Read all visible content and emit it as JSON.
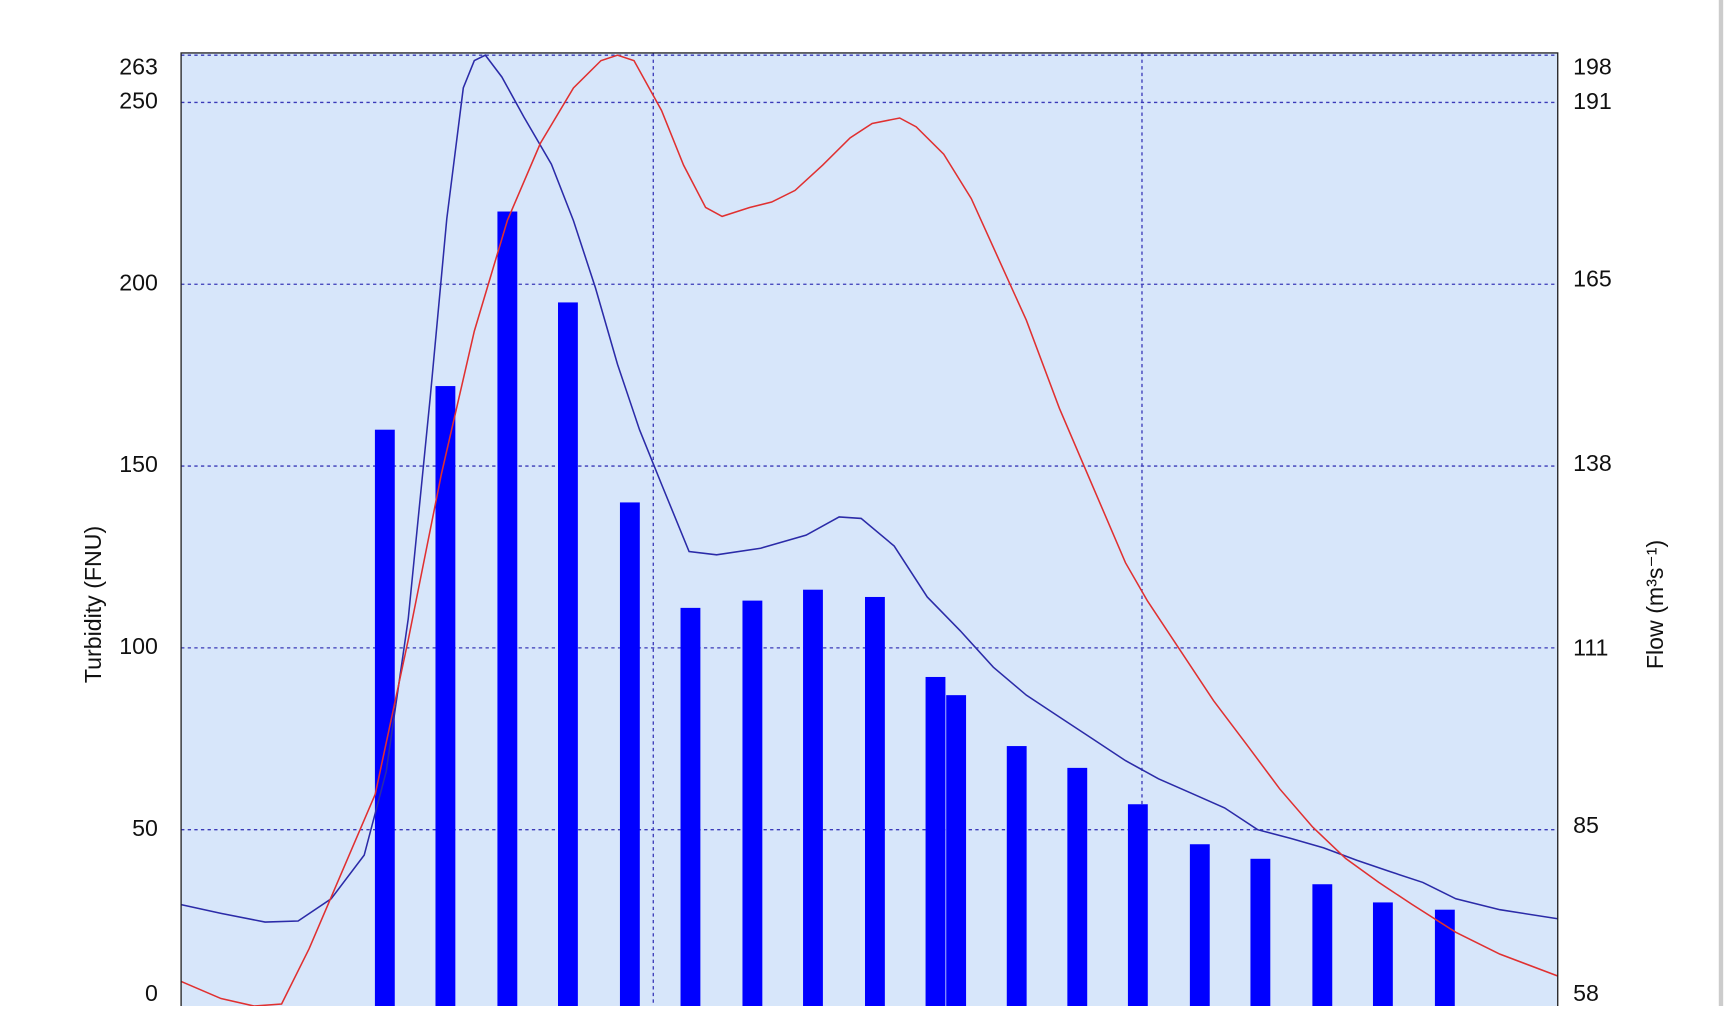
{
  "chart_data": {
    "type": "combo",
    "xlim": [
      0,
      100
    ],
    "xticks": [
      34.3,
      69.8
    ],
    "ylim": [
      0,
      263
    ],
    "yticks": [
      0,
      50,
      100,
      150,
      200,
      250,
      263
    ],
    "y2lim": [
      58,
      198
    ],
    "y2ticks": [
      58,
      85,
      111,
      138,
      165,
      191,
      198
    ],
    "ylabel": "Turbidity (FNU)",
    "y2label": "Flow (m³s⁻¹)",
    "grid": true,
    "series": [
      {
        "type": "bar",
        "color": "#0000ff",
        "x": [
          14.8,
          19.2,
          23.7,
          28.1,
          32.6,
          37.0,
          41.5,
          45.9,
          50.4,
          54.8,
          56.3,
          60.7,
          65.1,
          69.5,
          74.0,
          78.4,
          82.9,
          87.3,
          91.8
        ],
        "values": [
          160,
          172,
          220,
          195,
          140,
          111,
          113,
          116,
          114,
          92,
          87,
          73,
          67,
          57,
          46,
          42,
          35,
          30,
          28
        ]
      },
      {
        "type": "line",
        "color": "#2b2ba8",
        "x": [
          0,
          2.9,
          6.1,
          8.5,
          10.9,
          13.3,
          14.9,
          16.5,
          18.1,
          19.3,
          20.5,
          21.3,
          22.1,
          23.3,
          24.9,
          26.9,
          28.5,
          30.1,
          31.7,
          33.3,
          34.9,
          36.9,
          38.9,
          42.1,
          45.4,
          47.8,
          49.4,
          51.8,
          54.2,
          56.6,
          59.0,
          61.4,
          63.8,
          66.2,
          68.6,
          71.0,
          73.4,
          75.8,
          78.2,
          80.6,
          83.0,
          85.4,
          87.8,
          90.2,
          92.6,
          95.8,
          100
        ],
        "values": [
          29.4,
          27,
          24.6,
          24.9,
          31,
          43,
          66,
          108,
          169,
          218,
          254,
          261.5,
          263,
          257,
          246,
          233,
          217.5,
          199,
          178,
          160,
          145,
          126.5,
          125.6,
          127.4,
          131,
          136,
          135.6,
          128,
          114,
          104.7,
          94.7,
          87,
          81,
          75,
          69,
          64,
          60,
          56,
          50,
          47.6,
          45,
          41.6,
          38.5,
          35.5,
          31,
          28,
          25.5
        ]
      },
      {
        "type": "line",
        "color": "#e03030",
        "axis": "y2",
        "x": [
          0,
          2.9,
          5.3,
          7.3,
          9.3,
          11.7,
          14.1,
          16.5,
          18.9,
          21.3,
          23.7,
          26.1,
          28.5,
          30.5,
          31.7,
          32.9,
          34.9,
          36.5,
          38.1,
          39.3,
          41.3,
          42.9,
          44.6,
          46.6,
          48.6,
          50.2,
          52.2,
          53.4,
          55.4,
          57.4,
          59.4,
          61.4,
          63.8,
          66.2,
          68.6,
          70.2,
          72.6,
          75.0,
          77.4,
          79.8,
          82.2,
          84.6,
          87.0,
          89.4,
          92.6,
          95.8,
          100
        ],
        "values": [
          62.4,
          59.9,
          58.8,
          59.1,
          67.2,
          78.5,
          89.8,
          112.4,
          136.6,
          157.6,
          173.8,
          185.1,
          193.2,
          197.2,
          198,
          197.2,
          189.9,
          181.9,
          175.7,
          174.4,
          175.7,
          176.5,
          178.2,
          181.9,
          185.9,
          188,
          188.8,
          187.5,
          183.5,
          177,
          168.1,
          159.2,
          146.3,
          135,
          123.7,
          118.1,
          110.8,
          103.5,
          97.1,
          90.6,
          85,
          80.4,
          76.9,
          73.7,
          69.6,
          66.4,
          63.2
        ]
      }
    ]
  }
}
